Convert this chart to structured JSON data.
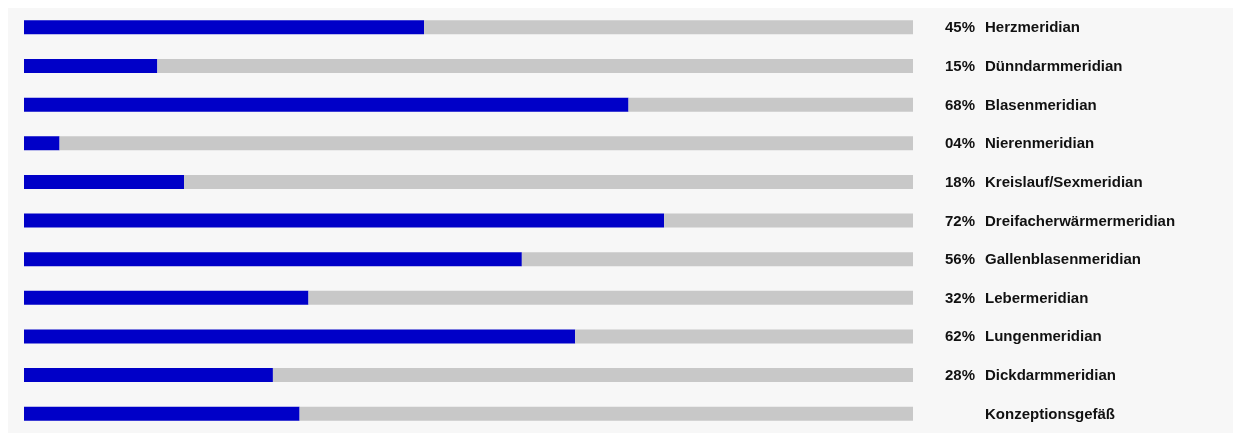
{
  "chart_data": {
    "type": "bar",
    "orientation": "horizontal",
    "stacked": true,
    "xlim": [
      0,
      100
    ],
    "tick_labels": "y",
    "categories": [
      "Herzmeridian",
      "Dünndarmmeridian",
      "Blasenmeridian",
      "Nierenmeridian",
      "Kreislauf/Sexmeridian",
      "Dreifacherwärmermeridian",
      "Gallenblasenmeridian",
      "Lebermeridian",
      "Lungenmeridian",
      "Dickdarmmeridian",
      "Konzeptionsgefäß"
    ],
    "series": [
      {
        "color": "#0000c8",
        "values": [
          45,
          15,
          68,
          4,
          18,
          72,
          56,
          32,
          62,
          28,
          31
        ],
        "value_labels": [
          "45%",
          "15%",
          "68%",
          "04%",
          "18%",
          "72%",
          "56%",
          "32%",
          "62%",
          "28%",
          null
        ]
      },
      {
        "color": "#c8c8c8",
        "values": [
          55,
          85,
          32,
          96,
          82,
          28,
          44,
          68,
          38,
          72,
          69
        ]
      }
    ]
  }
}
